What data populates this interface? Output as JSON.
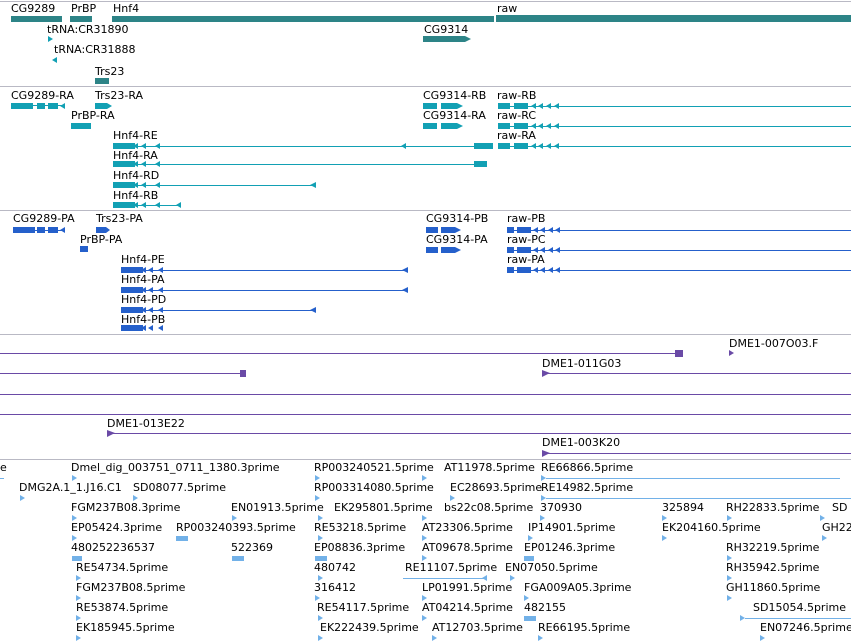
{
  "colors": {
    "gene": "#2d8487",
    "transcript": "#12a0b4",
    "protein": "#2560cb",
    "clone": "#6a4aa6",
    "est": "#72b1e8",
    "separator": "#b9b9c4"
  },
  "gene_track": {
    "labels": [
      "CG9289",
      "PrBP",
      "Hnf4",
      "raw",
      "tRNA:CR31890",
      "tRNA:CR31888",
      "CG9314",
      "Trs23"
    ]
  },
  "transcript_track": {
    "labels": [
      "CG9289-RA",
      "Trs23-RA",
      "PrBP-RA",
      "Hnf4-RE",
      "Hnf4-RA",
      "Hnf4-RD",
      "Hnf4-RB",
      "CG9314-RB",
      "CG9314-RA",
      "raw-RB",
      "raw-RC",
      "raw-RA"
    ]
  },
  "protein_track": {
    "labels": [
      "CG9289-PA",
      "Trs23-PA",
      "PrBP-PA",
      "Hnf4-PE",
      "Hnf4-PA",
      "Hnf4-PD",
      "Hnf4-PB",
      "CG9314-PB",
      "CG9314-PA",
      "raw-PB",
      "raw-PC",
      "raw-PA"
    ]
  },
  "clone_track": {
    "labels": [
      "DME1-007O03.F",
      "DME1-011G03",
      "DME1-013E22",
      "DME1-003K20"
    ]
  },
  "est_track": {
    "labels": [
      "Dmel_dig_003751_0711_1380.3prime",
      "RP003240521.5prime",
      "AT11978.5prime",
      "RE66866.5prime",
      "DMG2A.1_1.J16.C1",
      "SD08077.5prime",
      "RP003314080.5prime",
      "EC28693.5prime",
      "RE14982.5prime",
      "FGM237B08.3prime",
      "EN01913.5prime",
      "EK295801.5prime",
      "bs22c08.5prime",
      "370930",
      "325894",
      "RH22833.5prime",
      "SD",
      "EP05424.3prime",
      "RP003240393.5prime",
      "RE53218.5prime",
      "AT23306.5prime",
      "IP14901.5prime",
      "EK204160.5prime",
      "GH22",
      "480252236537",
      "522369",
      "EP08836.3prime",
      "AT09678.5prime",
      "EP01246.3prime",
      "RH32219.5prime",
      "RE54734.5prime",
      "480742",
      "RE11107.5prime",
      "EN07050.5prime",
      "RH35942.5prime",
      "FGM237B08.5prime",
      "316412",
      "LP01991.5prime",
      "FGA009A05.3prime",
      "GH11860.5prime",
      "RE53874.5prime",
      "RE54117.5prime",
      "AT04214.5prime",
      "482155",
      "SD15054.5prime",
      "EK185945.5prime",
      "EK222439.5prime",
      "AT12703.5prime",
      "RE66195.5prime",
      "EN07246.5prime",
      "e"
    ]
  }
}
